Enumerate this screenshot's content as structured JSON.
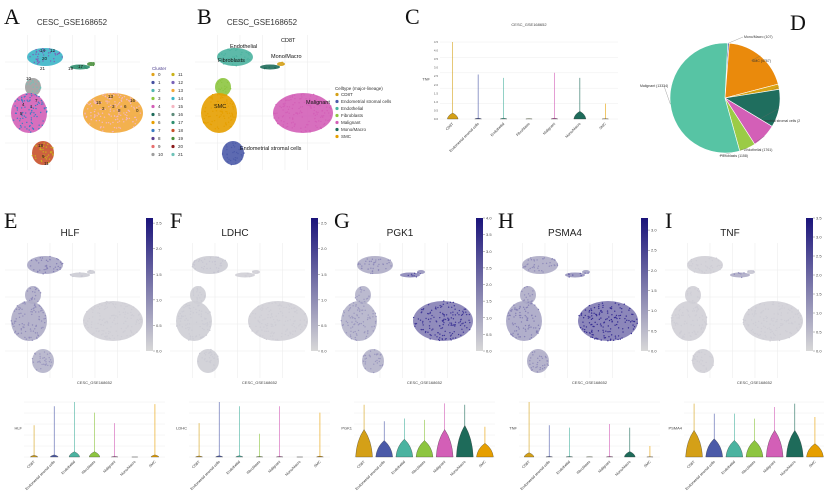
{
  "panels": {
    "A": {
      "letter": "A",
      "title": "CESC_GSE168652",
      "legend_title": "Cluster",
      "clusters": [
        "0",
        "1",
        "2",
        "3",
        "4",
        "5",
        "6",
        "7",
        "8",
        "9",
        "10",
        "11",
        "12",
        "13",
        "14",
        "15",
        "16",
        "17",
        "18",
        "19",
        "20",
        "21"
      ],
      "cluster_colors": [
        "#E0A31C",
        "#4550A0",
        "#52B6B0",
        "#8CC63F",
        "#D35FB7",
        "#1E6B5A",
        "#E69F00",
        "#3C7DC4",
        "#5A3F8F",
        "#E76F6F",
        "#9E9E9E",
        "#C9B21A",
        "#7A62B8",
        "#F2A93B",
        "#3BB5C8",
        "#F4B6C2",
        "#5E8C7A",
        "#2F8F6F",
        "#C8502A",
        "#4A8F3C",
        "#8B1A1A",
        "#6FC3B8"
      ],
      "cluster_labels_on_plot": [
        "14",
        "12",
        "20",
        "21",
        "10",
        "4",
        "7",
        "1",
        "5",
        "13",
        "15",
        "3",
        "2",
        "8",
        "6",
        "0",
        "16",
        "17",
        "19",
        "18",
        "9",
        "11"
      ]
    },
    "B": {
      "letter": "B",
      "title": "CESC_GSE168652",
      "legend_title": "Celltype (major-lineage)",
      "celltypes": [
        "CD8T",
        "Endometrial stromal cells",
        "Endothelial",
        "Fibroblasts",
        "Malignant",
        "Mono/Macro",
        "SMC"
      ],
      "colors": [
        "#D4A017",
        "#4B5AA8",
        "#4BB3A0",
        "#8DC540",
        "#D35FB7",
        "#1E6B5A",
        "#E69F00"
      ],
      "plot_labels": [
        "Endothelial",
        "CD8T",
        "Mono/Macro",
        "Fibroblasts",
        "SMC",
        "Malignant",
        "Endometrial stromal cells"
      ]
    },
    "C": {
      "letter": "C"
    },
    "D": {
      "letter": "D"
    },
    "E": {
      "letter": "E"
    },
    "F": {
      "letter": "F"
    },
    "G": {
      "letter": "G"
    },
    "H": {
      "letter": "H"
    },
    "I": {
      "letter": "I"
    }
  },
  "chart_data": [
    {
      "id": "C",
      "type": "violin",
      "title": "CESC_GSE168652",
      "ylabel": "TNF",
      "categories": [
        "CD8T",
        "Endometrial stromal cells",
        "Endothelial",
        "Fibroblasts",
        "Malignant",
        "Mono/Macro",
        "SMC"
      ],
      "max": [
        4.5,
        2.6,
        2.4,
        0.0,
        2.7,
        2.4,
        0.9
      ],
      "body": [
        0.35,
        0.05,
        0.05,
        0.02,
        0.05,
        0.45,
        0.02
      ],
      "yticks": [
        "0.0",
        "0.5",
        "1.0",
        "1.5",
        "2.0",
        "2.5",
        "3.0",
        "3.5",
        "4.0",
        "4.5"
      ],
      "ylim": [
        0,
        4.5
      ]
    },
    {
      "id": "D",
      "type": "pie",
      "labels": [
        "Mono/Macro (107)",
        "SMC (4767)",
        "CD8T (369)",
        "Endometrial stromal cells (2",
        "Endothelial (1761)",
        "Fibroblasts (1158)",
        "Malignant (13334)"
      ],
      "values": [
        107,
        4767,
        369,
        2700,
        1761,
        1158,
        13334
      ],
      "colors": [
        "#4558A8",
        "#EA8A0C",
        "#D9A414",
        "#1F6E5E",
        "#D35FB7",
        "#9BCB46",
        "#57C4A4"
      ]
    },
    {
      "id": "E",
      "type": "feature",
      "gene": "HLF",
      "colorbar_ticks": [
        "0.0",
        "0.5",
        "1.0",
        "1.5",
        "2.0",
        "2.5"
      ],
      "max": 2.6,
      "intensity": {
        "Endothelial": 0.35,
        "Fibroblasts": 0.3,
        "SMC": 0.3,
        "Malignant": 0.02,
        "Endometrial stromal cells": 0.25,
        "Mono/Macro": 0.05,
        "CD8T": 0.05
      }
    },
    {
      "id": "F",
      "type": "feature",
      "gene": "LDHC",
      "colorbar_ticks": [
        "0.0",
        "0.5",
        "1.0",
        "1.5",
        "2.0",
        "2.5"
      ],
      "max": 2.6,
      "intensity": {
        "Endothelial": 0.05,
        "Fibroblasts": 0.03,
        "SMC": 0.03,
        "Malignant": 0.02,
        "Endometrial stromal cells": 0.03,
        "Mono/Macro": 0.02,
        "CD8T": 0.02
      }
    },
    {
      "id": "G",
      "type": "feature",
      "gene": "PGK1",
      "colorbar_ticks": [
        "0.0",
        "0.5",
        "1.0",
        "1.5",
        "2.0",
        "2.5",
        "3.0",
        "3.5",
        "4.0"
      ],
      "max": 4.0,
      "intensity": {
        "Endothelial": 0.3,
        "Fibroblasts": 0.25,
        "SMC": 0.25,
        "Malignant": 0.65,
        "Endometrial stromal cells": 0.25,
        "Mono/Macro": 0.6,
        "CD8T": 0.5
      }
    },
    {
      "id": "H",
      "type": "feature",
      "gene": "PSMA4",
      "colorbar_ticks": [
        "0.0",
        "0.5",
        "1.0",
        "1.5",
        "2.0",
        "2.5",
        "3.0"
      ],
      "max": 3.3,
      "intensity": {
        "Endothelial": 0.3,
        "Fibroblasts": 0.3,
        "SMC": 0.35,
        "Malignant": 0.7,
        "Endometrial stromal cells": 0.3,
        "Mono/Macro": 0.5,
        "CD8T": 0.4
      }
    },
    {
      "id": "I",
      "type": "feature",
      "gene": "TNF",
      "colorbar_ticks": [
        "0.0",
        "0.5",
        "1.0",
        "1.5",
        "2.0",
        "2.5",
        "3.0",
        "3.5"
      ],
      "max": 3.5,
      "intensity": {
        "Endothelial": 0.02,
        "Fibroblasts": 0.02,
        "SMC": 0.02,
        "Malignant": 0.02,
        "Endometrial stromal cells": 0.02,
        "Mono/Macro": 0.3,
        "CD8T": 0.1
      }
    },
    {
      "id": "E2",
      "type": "violin",
      "title": "CESC_GSE168652",
      "ylabel": "HLF",
      "categories": [
        "CD8T",
        "Endometrial stromal cells",
        "Endothelial",
        "Fibroblasts",
        "Malignant",
        "Mono/Macro",
        "SMC"
      ],
      "max": [
        1.5,
        2.4,
        2.6,
        2.1,
        1.6,
        0.0,
        2.5
      ],
      "body": [
        0.08,
        0.1,
        0.25,
        0.25,
        0.03,
        0.0,
        0.1
      ],
      "ylim": [
        0,
        2.6
      ]
    },
    {
      "id": "F2",
      "type": "violin",
      "title": "CESC_GSE168652",
      "ylabel": "LDHC",
      "categories": [
        "CD8T",
        "Endometrial stromal cells",
        "Endothelial",
        "Fibroblasts",
        "Malignant",
        "Mono/Macro",
        "SMC"
      ],
      "max": [
        1.6,
        2.6,
        2.4,
        1.1,
        2.4,
        0.0,
        2.1
      ],
      "body": [
        0.05,
        0.06,
        0.06,
        0.03,
        0.03,
        0.0,
        0.04
      ],
      "ylim": [
        0,
        2.6
      ]
    },
    {
      "id": "G2",
      "type": "violin",
      "title": "CESC_GSE168652",
      "ylabel": "PGK1",
      "categories": [
        "CD8T",
        "Endometrial stromal cells",
        "Endothelial",
        "Fibroblasts",
        "Malignant",
        "Mono/Macro",
        "SMC"
      ],
      "max": [
        3.8,
        2.6,
        2.8,
        2.7,
        3.9,
        3.8,
        2.2
      ],
      "body": [
        2.0,
        1.2,
        1.3,
        1.2,
        2.0,
        2.3,
        1.0
      ],
      "ylim": [
        0,
        4.0
      ]
    },
    {
      "id": "H2",
      "type": "violin",
      "title": "CESC_GSE168652",
      "ylabel": "TNF",
      "categories": [
        "CD8T",
        "Endometrial stromal cells",
        "Endothelial",
        "Fibroblasts",
        "Malignant",
        "Mono/Macro",
        "SMC"
      ],
      "max": [
        4.5,
        2.6,
        2.4,
        0.0,
        2.7,
        2.4,
        0.9
      ],
      "body": [
        0.35,
        0.05,
        0.05,
        0.02,
        0.05,
        0.45,
        0.02
      ],
      "ylim": [
        0,
        4.5
      ]
    },
    {
      "id": "I2",
      "type": "violin",
      "title": "CESC_GSE168652",
      "ylabel": "PSMA4",
      "categories": [
        "CD8T",
        "Endometrial stromal cells",
        "Endothelial",
        "Fibroblasts",
        "Malignant",
        "Mono/Macro",
        "SMC"
      ],
      "max": [
        3.2,
        2.6,
        2.6,
        2.3,
        3.0,
        3.2,
        2.4
      ],
      "body": [
        1.6,
        1.1,
        1.0,
        1.0,
        1.6,
        1.6,
        0.8
      ],
      "ylim": [
        0,
        3.3
      ]
    }
  ]
}
